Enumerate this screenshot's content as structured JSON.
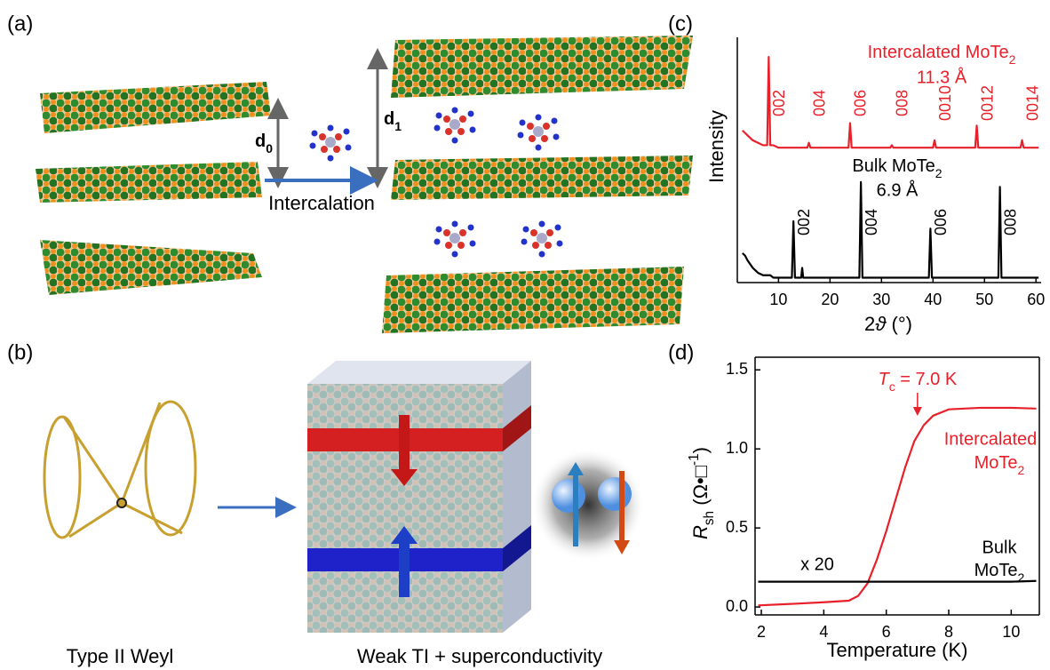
{
  "panel_labels": [
    "(a)",
    "(b)",
    "(c)",
    "(d)"
  ],
  "panel_a": {
    "d0": [
      "d",
      "0"
    ],
    "d1": [
      "d",
      "1"
    ],
    "arrow_label": "Intercalation"
  },
  "panel_b": {
    "left_caption": "Type II Weyl",
    "right_caption": "Weak TI + superconductivity"
  },
  "chart_data": [
    {
      "type": "line",
      "xlabel": [
        "2",
        "ϑ",
        " (°)"
      ],
      "ylabel": "Intensity",
      "x": [
        3,
        3.5,
        4,
        5,
        6,
        7,
        7.8,
        8.1,
        8.4,
        9,
        10,
        12,
        12.6,
        12.9,
        13.2,
        14,
        14.4,
        14.6,
        14.8,
        15.6,
        15.9,
        16.2,
        18,
        20,
        23.6,
        23.9,
        24.2,
        25.7,
        26,
        26.3,
        28,
        31.7,
        32,
        32.3,
        36,
        39.2,
        39.5,
        39.8,
        40,
        40.3,
        40.6,
        44,
        48.2,
        48.5,
        48.8,
        52.7,
        53,
        53.3,
        56,
        57,
        57.3,
        57.6,
        59,
        60.5
      ],
      "xlim": [
        2,
        61
      ],
      "xticks": [
        10,
        20,
        30,
        40,
        50,
        60
      ],
      "ylim": [
        0,
        100
      ],
      "series": [
        {
          "name": [
            "Intercalated MoTe",
            "2"
          ],
          "spacing": "11.3 Å",
          "color": "#e8202a",
          "values": [
            62,
            61,
            60,
            58,
            57,
            56,
            56,
            92,
            56,
            56,
            55,
            55,
            55,
            55,
            55,
            55,
            55,
            55,
            55,
            55,
            57,
            55,
            55,
            55,
            55,
            65,
            55,
            55,
            55,
            55,
            55,
            55,
            56,
            55,
            55,
            55,
            55,
            55,
            55,
            58,
            55,
            55,
            55,
            64,
            55,
            55,
            55,
            55,
            55,
            55,
            58,
            55,
            55,
            55
          ],
          "peak_labels": [
            {
              "text": "002",
              "x": 8.1
            },
            {
              "text": "004",
              "x": 15.9
            },
            {
              "text": "006",
              "x": 23.9
            },
            {
              "text": "008",
              "x": 32
            },
            {
              "text": "0010",
              "x": 40.3
            },
            {
              "text": "0012",
              "x": 48.5
            },
            {
              "text": "0014",
              "x": 57.3
            }
          ]
        },
        {
          "name": [
            "Bulk MoTe",
            "2"
          ],
          "spacing": "6.9 Å",
          "color": "#000000",
          "values": [
            12,
            11,
            9,
            6,
            4,
            3,
            3,
            3,
            3,
            2,
            2,
            2,
            2,
            25,
            2,
            2,
            2,
            6,
            2,
            2,
            2,
            2,
            2,
            2,
            2,
            2,
            2,
            2,
            41,
            2,
            2,
            2,
            2,
            2,
            2,
            2,
            22,
            2,
            2,
            2,
            2,
            2,
            2,
            2,
            2,
            2,
            39,
            2,
            2,
            2,
            2,
            2,
            2,
            2
          ],
          "peak_labels": [
            {
              "text": "002",
              "x": 12.9
            },
            {
              "text": "004",
              "x": 26
            },
            {
              "text": "006",
              "x": 39.5
            },
            {
              "text": "008",
              "x": 53
            }
          ]
        }
      ]
    },
    {
      "type": "line",
      "xlabel": "Temperature (K)",
      "ylabel": [
        "R",
        "sh",
        " (Ω•□",
        "-1",
        ")"
      ],
      "x": [
        1.9,
        3,
        4,
        4.8,
        5.1,
        5.4,
        5.7,
        6.0,
        6.3,
        6.6,
        6.9,
        7.2,
        7.5,
        8,
        9,
        10,
        10.8
      ],
      "xlim": [
        1.8,
        10.9
      ],
      "xticks": [
        2,
        4,
        6,
        8,
        10
      ],
      "ylim": [
        -0.05,
        1.58
      ],
      "yticks": [
        {
          "value": 0,
          "label": "0.0"
        },
        {
          "value": 0.5,
          "label": "0.5"
        },
        {
          "value": 1,
          "label": "1.0"
        },
        {
          "value": 1.5,
          "label": "1.5"
        }
      ],
      "series": [
        {
          "name": [
            "Intercalated",
            "MoTe",
            "2"
          ],
          "color": "#e8202a",
          "values": [
            0.01,
            0.02,
            0.03,
            0.04,
            0.07,
            0.15,
            0.3,
            0.48,
            0.68,
            0.88,
            1.05,
            1.15,
            1.21,
            1.25,
            1.26,
            1.26,
            1.255
          ]
        },
        {
          "name": [
            "Bulk",
            "MoTe",
            "2"
          ],
          "color": "#000000",
          "scale_note": "x 20",
          "values": [
            0.16,
            0.16,
            0.16,
            0.16,
            0.16,
            0.16,
            0.16,
            0.16,
            0.16,
            0.16,
            0.16,
            0.16,
            0.16,
            0.16,
            0.16,
            0.16,
            0.165
          ]
        }
      ],
      "tc": {
        "label": [
          "T",
          "c",
          " = 7.0 K"
        ],
        "x": 7
      }
    }
  ]
}
